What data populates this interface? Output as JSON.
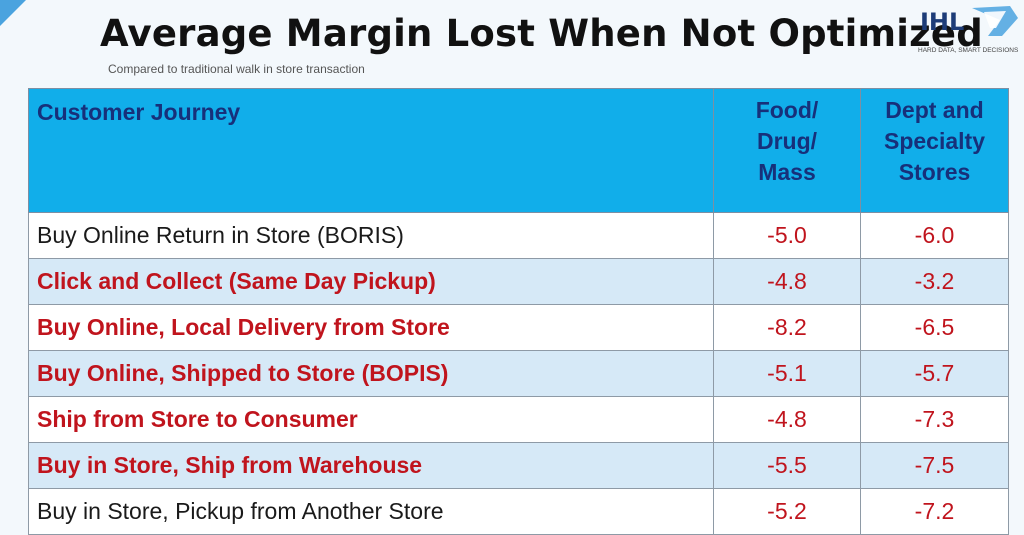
{
  "header": {
    "title": "Average Margin Lost When Not Optimized",
    "subtitle": "Compared to traditional walk in store transaction"
  },
  "logo": {
    "name": "IHL",
    "tagline": "HARD DATA, SMART DECISIONS",
    "colors": {
      "text": "#1d3c78",
      "swoosh": "#4aa3df"
    }
  },
  "table": {
    "headers": {
      "journey": "Customer Journey",
      "food": [
        "Food/",
        "Drug/",
        "Mass"
      ],
      "dept": [
        "Dept and",
        "Specialty",
        "Stores"
      ]
    },
    "rows": [
      {
        "journey": "Buy Online Return in Store (BORIS)",
        "food": "-5.0",
        "dept": "-6.0",
        "highlight": false
      },
      {
        "journey": "Click and Collect (Same Day Pickup)",
        "food": "-4.8",
        "dept": "-3.2",
        "highlight": true
      },
      {
        "journey": "Buy Online, Local Delivery from Store",
        "food": "-8.2",
        "dept": "-6.5",
        "highlight": true
      },
      {
        "journey": "Buy Online, Shipped to Store (BOPIS)",
        "food": "-5.1",
        "dept": "-5.7",
        "highlight": true
      },
      {
        "journey": "Ship from Store to Consumer",
        "food": "-4.8",
        "dept": "-7.3",
        "highlight": true
      },
      {
        "journey": "Buy in Store, Ship from Warehouse",
        "food": "-5.5",
        "dept": "-7.5",
        "highlight": true
      },
      {
        "journey": "Buy in Store, Pickup from Another Store",
        "food": "-5.2",
        "dept": "-7.2",
        "highlight": false
      }
    ]
  },
  "colors": {
    "header_bg": "#11aeea",
    "header_text": "#17307a",
    "highlight_text": "#c0141d",
    "row_alt_bg": "#d6e9f7",
    "value_text": "#c0141d"
  }
}
